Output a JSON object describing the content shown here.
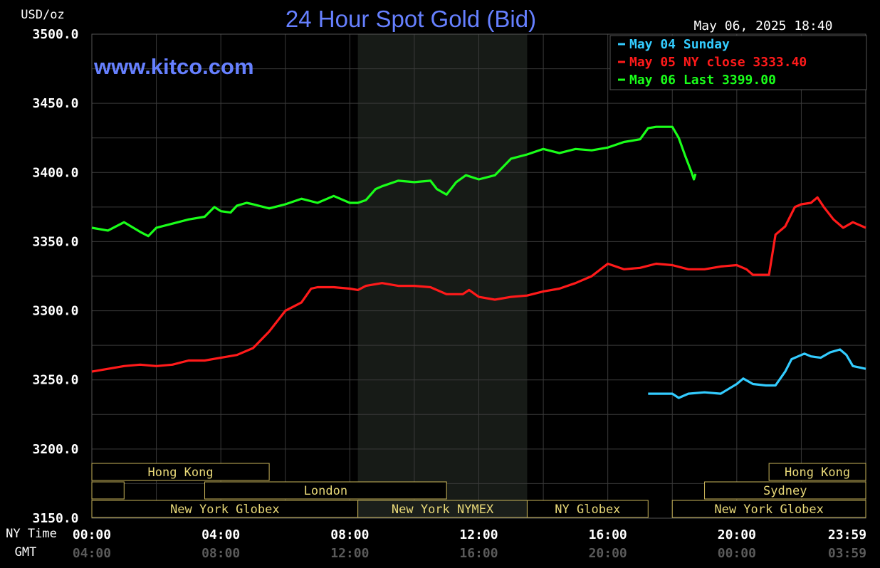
{
  "header": {
    "unit": "USD/oz",
    "title": "24 Hour Spot Gold (Bid)",
    "timestamp": "May 06, 2025 18:40",
    "website": "www.kitco.com",
    "nytime_label": "NY Time",
    "gmt_label": "GMT"
  },
  "legend": [
    {
      "text": "May 04 Sunday",
      "color": "#33ccff"
    },
    {
      "text": "May 05 NY close 3333.40",
      "color": "#ff1a1a"
    },
    {
      "text": "May 06 Last 3399.00",
      "color": "#1aff1a"
    }
  ],
  "markets": {
    "row1": [
      {
        "name": "Hong Kong",
        "start": 0,
        "end": 5.5
      },
      {
        "name": "Hong Kong",
        "start": 21.0,
        "end": 24
      }
    ],
    "row2": [
      {
        "name": "",
        "start": 0,
        "end": 1.0
      },
      {
        "name": "London",
        "start": 3.5,
        "end": 11.0
      },
      {
        "name": "Sydney",
        "start": 19.0,
        "end": 24
      }
    ],
    "row3": [
      {
        "name": "New York Globex",
        "start": 0,
        "end": 8.25
      },
      {
        "name": "New York NYMEX",
        "start": 8.25,
        "end": 13.5
      },
      {
        "name": "NY Globex",
        "start": 13.5,
        "end": 17.25
      },
      {
        "name": "New York Globex",
        "start": 18.0,
        "end": 24
      }
    ]
  },
  "chart_data": {
    "type": "line",
    "title": "24 Hour Spot Gold (Bid)",
    "ylabel": "USD/oz",
    "ylim": [
      3150,
      3500
    ],
    "xlim": [
      0,
      24
    ],
    "y_ticks": [
      "3500.0",
      "3450.0",
      "3400.0",
      "3350.0",
      "3300.0",
      "3250.0",
      "3200.0",
      "3150.0"
    ],
    "x_ticks_ny": [
      "00:00",
      "04:00",
      "08:00",
      "12:00",
      "16:00",
      "20:00",
      "23:59"
    ],
    "x_ticks_gmt": [
      "04:00",
      "08:00",
      "12:00",
      "16:00",
      "20:00",
      "00:00",
      "03:59"
    ],
    "shaded_session_hours": [
      8.25,
      13.5
    ],
    "grid": true,
    "series": [
      {
        "name": "May 04 Sunday",
        "color": "#33ccff",
        "points": [
          [
            17.25,
            3240
          ],
          [
            18.0,
            3240
          ],
          [
            18.2,
            3237
          ],
          [
            18.5,
            3240
          ],
          [
            19.0,
            3241
          ],
          [
            19.5,
            3240
          ],
          [
            20.0,
            3247
          ],
          [
            20.2,
            3251
          ],
          [
            20.5,
            3247
          ],
          [
            20.9,
            3246
          ],
          [
            21.2,
            3246
          ],
          [
            21.5,
            3256
          ],
          [
            21.7,
            3265
          ],
          [
            21.9,
            3267
          ],
          [
            22.1,
            3269
          ],
          [
            22.3,
            3267
          ],
          [
            22.6,
            3266
          ],
          [
            22.9,
            3270
          ],
          [
            23.2,
            3272
          ],
          [
            23.4,
            3268
          ],
          [
            23.6,
            3260
          ],
          [
            23.8,
            3259
          ],
          [
            24.0,
            3258
          ]
        ]
      },
      {
        "name": "May 05 NY close 3333.40",
        "color": "#ff1a1a",
        "points": [
          [
            0,
            3256
          ],
          [
            0.5,
            3258
          ],
          [
            1.0,
            3260
          ],
          [
            1.5,
            3261
          ],
          [
            2.0,
            3260
          ],
          [
            2.5,
            3261
          ],
          [
            3.0,
            3264
          ],
          [
            3.5,
            3264
          ],
          [
            4.0,
            3266
          ],
          [
            4.5,
            3268
          ],
          [
            5.0,
            3273
          ],
          [
            5.5,
            3285
          ],
          [
            6.0,
            3300
          ],
          [
            6.5,
            3306
          ],
          [
            6.8,
            3316
          ],
          [
            7.0,
            3317
          ],
          [
            7.5,
            3317
          ],
          [
            8.0,
            3316
          ],
          [
            8.25,
            3315
          ],
          [
            8.5,
            3318
          ],
          [
            9.0,
            3320
          ],
          [
            9.5,
            3318
          ],
          [
            10.0,
            3318
          ],
          [
            10.5,
            3317
          ],
          [
            11.0,
            3312
          ],
          [
            11.5,
            3312
          ],
          [
            11.7,
            3315
          ],
          [
            12.0,
            3310
          ],
          [
            12.5,
            3308
          ],
          [
            13.0,
            3310
          ],
          [
            13.5,
            3311
          ],
          [
            14.0,
            3314
          ],
          [
            14.5,
            3316
          ],
          [
            15.0,
            3320
          ],
          [
            15.5,
            3325
          ],
          [
            16.0,
            3334
          ],
          [
            16.5,
            3330
          ],
          [
            17.0,
            3331
          ],
          [
            17.5,
            3334
          ],
          [
            18.0,
            3333
          ],
          [
            18.5,
            3330
          ],
          [
            19.0,
            3330
          ],
          [
            19.5,
            3332
          ],
          [
            20.0,
            3333
          ],
          [
            20.3,
            3330
          ],
          [
            20.5,
            3326
          ],
          [
            21.0,
            3326
          ],
          [
            21.2,
            3355
          ],
          [
            21.5,
            3361
          ],
          [
            21.8,
            3375
          ],
          [
            22.0,
            3377
          ],
          [
            22.3,
            3378
          ],
          [
            22.5,
            3382
          ],
          [
            22.7,
            3375
          ],
          [
            23.0,
            3366
          ],
          [
            23.3,
            3360
          ],
          [
            23.6,
            3364
          ],
          [
            24.0,
            3360
          ]
        ]
      },
      {
        "name": "May 06 Last 3399.00",
        "color": "#1aff1a",
        "points": [
          [
            0,
            3360
          ],
          [
            0.5,
            3358
          ],
          [
            1.0,
            3364
          ],
          [
            1.5,
            3357
          ],
          [
            1.75,
            3354
          ],
          [
            2.0,
            3360
          ],
          [
            2.5,
            3363
          ],
          [
            3.0,
            3366
          ],
          [
            3.5,
            3368
          ],
          [
            3.8,
            3375
          ],
          [
            4.0,
            3372
          ],
          [
            4.3,
            3371
          ],
          [
            4.5,
            3376
          ],
          [
            4.8,
            3378
          ],
          [
            5.0,
            3377
          ],
          [
            5.5,
            3374
          ],
          [
            6.0,
            3377
          ],
          [
            6.5,
            3381
          ],
          [
            7.0,
            3378
          ],
          [
            7.5,
            3383
          ],
          [
            8.0,
            3378
          ],
          [
            8.25,
            3378
          ],
          [
            8.5,
            3380
          ],
          [
            8.8,
            3388
          ],
          [
            9.0,
            3390
          ],
          [
            9.5,
            3394
          ],
          [
            10.0,
            3393
          ],
          [
            10.5,
            3394
          ],
          [
            10.7,
            3388
          ],
          [
            11.0,
            3384
          ],
          [
            11.3,
            3393
          ],
          [
            11.6,
            3398
          ],
          [
            12.0,
            3395
          ],
          [
            12.5,
            3398
          ],
          [
            13.0,
            3410
          ],
          [
            13.5,
            3413
          ],
          [
            14.0,
            3417
          ],
          [
            14.5,
            3414
          ],
          [
            15.0,
            3417
          ],
          [
            15.5,
            3416
          ],
          [
            16.0,
            3418
          ],
          [
            16.5,
            3422
          ],
          [
            17.0,
            3424
          ],
          [
            17.25,
            3432
          ],
          [
            17.5,
            3433
          ],
          [
            18.0,
            3433
          ],
          [
            18.2,
            3425
          ],
          [
            18.4,
            3412
          ],
          [
            18.6,
            3400
          ],
          [
            18.67,
            3395
          ],
          [
            18.72,
            3399
          ]
        ]
      }
    ]
  }
}
